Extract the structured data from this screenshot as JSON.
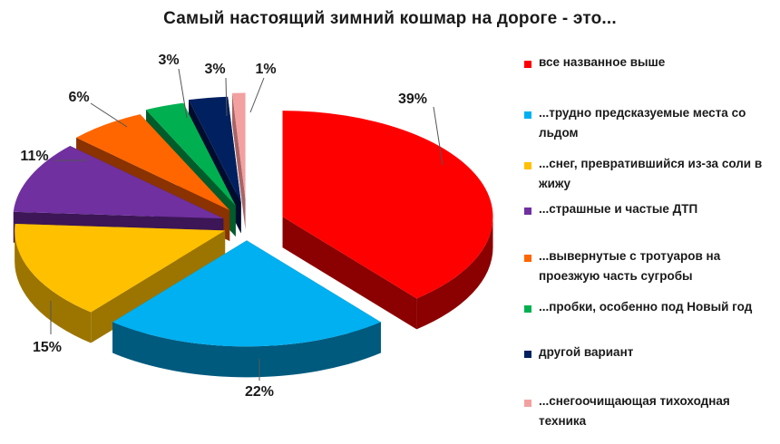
{
  "chart_data": {
    "type": "pie",
    "title": "Самый настоящий зимний кошмар на дороге - это...",
    "legend_position": "right",
    "slices": [
      {
        "label": "все  названное  выше",
        "value": 39,
        "value_label": "39%",
        "color": "#ff0000",
        "side_color": "#8b0000"
      },
      {
        "label": "...трудно предсказуемые места со льдом",
        "value": 22,
        "value_label": "22%",
        "color": "#00b0f0",
        "side_color": "#005a7e"
      },
      {
        "label": "...снег, превратившийся  из-за соли в жижу",
        "value": 15,
        "value_label": "15%",
        "color": "#ffc000",
        "side_color": "#9c7500"
      },
      {
        "label": "...страшные и частые ДТП",
        "value": 11,
        "value_label": "11%",
        "color": "#7030a0",
        "side_color": "#3c1656"
      },
      {
        "label": "...вывернутые с тротуаров на проезжую часть сугробы",
        "value": 6,
        "value_label": "6%",
        "color": "#ff6600",
        "side_color": "#8a3200"
      },
      {
        "label": "...пробки, особенно под Новый год",
        "value": 3,
        "value_label": "3%",
        "color": "#00b050",
        "side_color": "#005c2a"
      },
      {
        "label": "другой вариант",
        "value": 3,
        "value_label": "3%",
        "color": "#002060",
        "side_color": "#000c2e"
      },
      {
        "label": "...снегоочищающая  тихоходная техника",
        "value": 1,
        "value_label": "1%",
        "color": "#f2a0a0",
        "side_color": "#a86464"
      }
    ]
  }
}
